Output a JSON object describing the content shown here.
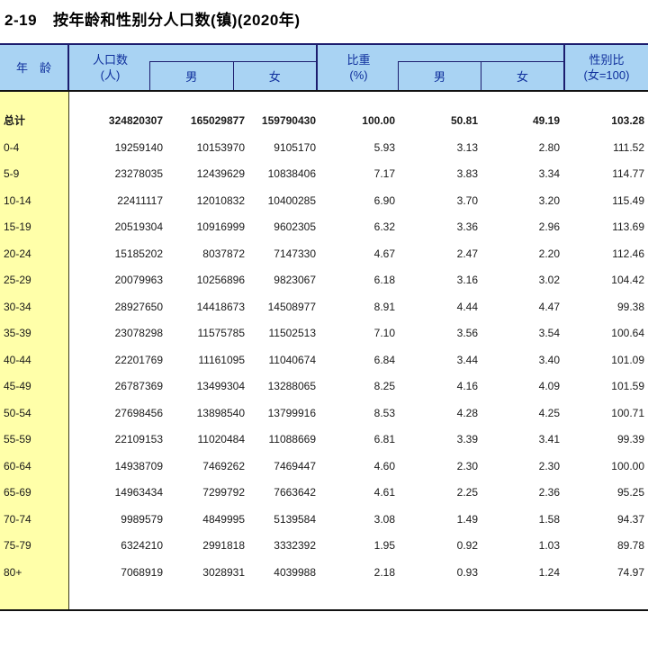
{
  "title": {
    "number": "2-19",
    "text": "按年龄和性别分人口数(镇)(2020年)"
  },
  "colors": {
    "header_bg": "#a9d3f3",
    "header_border": "#1c1c6e",
    "header_text": "#0f2f9c",
    "age_col_bg": "#ffffa9",
    "rule": "#111111"
  },
  "table": {
    "header": {
      "age_label": "年　龄",
      "population": {
        "line1": "人口数",
        "line2": "(人)",
        "male": "男",
        "female": "女"
      },
      "proportion": {
        "line1": "比重",
        "line2": "(%)",
        "male": "男",
        "female": "女"
      },
      "sex_ratio": {
        "line1": "性别比",
        "line2": "(女=100)"
      }
    },
    "columns": [
      "年龄",
      "人口数(人)",
      "男",
      "女",
      "比重(%)",
      "男",
      "女",
      "性别比(女=100)"
    ],
    "rows": [
      {
        "age": "总计",
        "bold": true,
        "values": [
          "324820307",
          "165029877",
          "159790430",
          "100.00",
          "50.81",
          "49.19",
          "103.28"
        ]
      },
      {
        "age": "0-4",
        "bold": false,
        "values": [
          "19259140",
          "10153970",
          "9105170",
          "5.93",
          "3.13",
          "2.80",
          "111.52"
        ]
      },
      {
        "age": "5-9",
        "bold": false,
        "values": [
          "23278035",
          "12439629",
          "10838406",
          "7.17",
          "3.83",
          "3.34",
          "114.77"
        ]
      },
      {
        "age": "10-14",
        "bold": false,
        "values": [
          "22411117",
          "12010832",
          "10400285",
          "6.90",
          "3.70",
          "3.20",
          "115.49"
        ]
      },
      {
        "age": "15-19",
        "bold": false,
        "values": [
          "20519304",
          "10916999",
          "9602305",
          "6.32",
          "3.36",
          "2.96",
          "113.69"
        ]
      },
      {
        "age": "20-24",
        "bold": false,
        "values": [
          "15185202",
          "8037872",
          "7147330",
          "4.67",
          "2.47",
          "2.20",
          "112.46"
        ]
      },
      {
        "age": "25-29",
        "bold": false,
        "values": [
          "20079963",
          "10256896",
          "9823067",
          "6.18",
          "3.16",
          "3.02",
          "104.42"
        ]
      },
      {
        "age": "30-34",
        "bold": false,
        "values": [
          "28927650",
          "14418673",
          "14508977",
          "8.91",
          "4.44",
          "4.47",
          "99.38"
        ]
      },
      {
        "age": "35-39",
        "bold": false,
        "values": [
          "23078298",
          "11575785",
          "11502513",
          "7.10",
          "3.56",
          "3.54",
          "100.64"
        ]
      },
      {
        "age": "40-44",
        "bold": false,
        "values": [
          "22201769",
          "11161095",
          "11040674",
          "6.84",
          "3.44",
          "3.40",
          "101.09"
        ]
      },
      {
        "age": "45-49",
        "bold": false,
        "values": [
          "26787369",
          "13499304",
          "13288065",
          "8.25",
          "4.16",
          "4.09",
          "101.59"
        ]
      },
      {
        "age": "50-54",
        "bold": false,
        "values": [
          "27698456",
          "13898540",
          "13799916",
          "8.53",
          "4.28",
          "4.25",
          "100.71"
        ]
      },
      {
        "age": "55-59",
        "bold": false,
        "values": [
          "22109153",
          "11020484",
          "11088669",
          "6.81",
          "3.39",
          "3.41",
          "99.39"
        ]
      },
      {
        "age": "60-64",
        "bold": false,
        "values": [
          "14938709",
          "7469262",
          "7469447",
          "4.60",
          "2.30",
          "2.30",
          "100.00"
        ]
      },
      {
        "age": "65-69",
        "bold": false,
        "values": [
          "14963434",
          "7299792",
          "7663642",
          "4.61",
          "2.25",
          "2.36",
          "95.25"
        ]
      },
      {
        "age": "70-74",
        "bold": false,
        "values": [
          "9989579",
          "4849995",
          "5139584",
          "3.08",
          "1.49",
          "1.58",
          "94.37"
        ]
      },
      {
        "age": "75-79",
        "bold": false,
        "values": [
          "6324210",
          "2991818",
          "3332392",
          "1.95",
          "0.92",
          "1.03",
          "89.78"
        ]
      },
      {
        "age": "80+",
        "bold": false,
        "values": [
          "7068919",
          "3028931",
          "4039988",
          "2.18",
          "0.93",
          "1.24",
          "74.97"
        ]
      }
    ]
  }
}
